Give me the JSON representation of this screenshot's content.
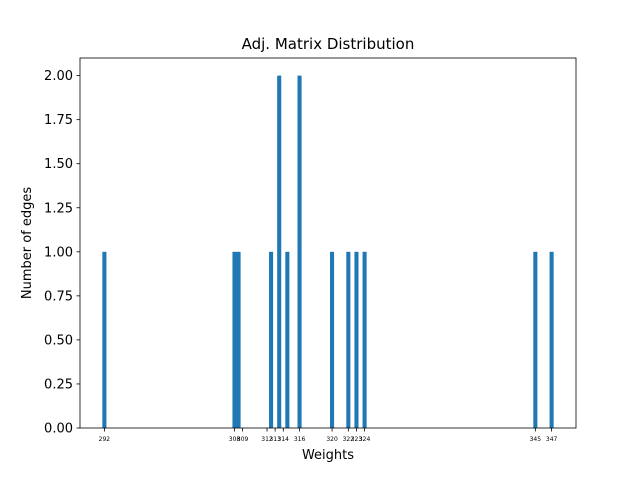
{
  "chart_data": {
    "type": "bar",
    "title": "Adj. Matrix Distribution",
    "xlabel": "Weights",
    "ylabel": "Number of edges",
    "x": [
      292,
      308,
      308.5,
      312.5,
      313.5,
      314.5,
      316,
      320,
      322,
      323,
      324,
      345,
      347
    ],
    "values": [
      1,
      1,
      1,
      1,
      2,
      1,
      2,
      1,
      1,
      1,
      1,
      1,
      1
    ],
    "xticks": [
      292,
      308,
      309,
      312,
      313,
      314,
      316,
      320,
      322,
      323,
      324,
      345,
      347
    ],
    "xtick_labels": [
      "292",
      "308",
      "309",
      "312",
      "313",
      "314",
      "316",
      "320",
      "322",
      "323",
      "324",
      "345",
      "347"
    ],
    "xlim": [
      289,
      350
    ],
    "ylim": [
      0,
      2.1
    ],
    "yticks": [
      0.0,
      0.25,
      0.5,
      0.75,
      1.0,
      1.25,
      1.5,
      1.75,
      2.0
    ],
    "ytick_labels": [
      "0.00",
      "0.25",
      "0.50",
      "0.75",
      "1.00",
      "1.25",
      "1.50",
      "1.75",
      "2.00"
    ],
    "bar_width": 0.5,
    "grid": false,
    "color": "#1f77b4"
  }
}
